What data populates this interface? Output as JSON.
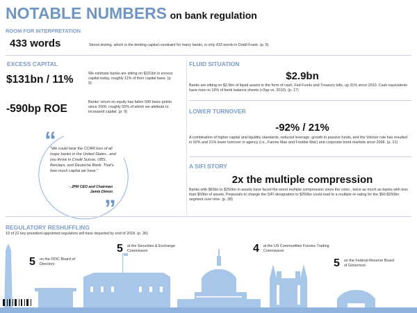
{
  "header": {
    "title": "NOTABLE NUMBERS",
    "subtitle": "on bank regulation"
  },
  "room": {
    "label": "ROOM FOR INTERPRETATION",
    "value": "433 words",
    "text": "Stress testing, which is the binding capital constraint for many banks, is only 433 words in Dodd Frank. (p. 9)"
  },
  "excess": {
    "label": "EXCESS CAPITAL",
    "value1": "$131bn / 11%",
    "text1": "We estimate banks are sitting on $131bn in excess capital today, roughly 11% of their capital base. (p. 9)",
    "value2": "-590bp ROE",
    "text2": "Banks' return on equity has fallen 590 basis points since 2006, roughly 50% of which we attribute to increased capital. (p. 9)"
  },
  "quote": {
    "text": "\"We could bear the CCAR loss of all major banks in the United States...and you throw in Credit Suisse, UBS, Barclays, and Deutsche Bank. That's how much capital we have.\"",
    "attribution1": "- JPM CEO and Chairman",
    "attribution2": "Jamie Dimon",
    "open_mark": "“",
    "close_mark": "”"
  },
  "fluid": {
    "label": "FLUID SITUATION",
    "value": "$2.9bn",
    "text": "Banks are sitting on $2.9bn of liquid assets in the form of cash, Fed Funds and Treasury bills, up 31% since 2010. Cash equivalents have risen to 16% of bank balance sheets (+2pp vs. 2010). (p. 17)"
  },
  "turnover": {
    "label": "LOWER TURNOVER",
    "value": "-92% / 21%",
    "text": "A combination of higher capital and liquidity standards, reduced leverage, growth in passive funds, and the Volcker rule has resulted in 92% and 21% lower turnover in agency (i.e., Fannie Mae and Freddie Mac) and corporate bond markets since 2006. (p. 21)"
  },
  "sifi": {
    "label": "A SIFI STORY",
    "value": "2x the multiple compression",
    "text": "Banks with $50bn to $250bn in assets have faced the worst multiple compression since the crisis , twice as much as banks with less than $50bn of assets. Proposals to change the SIFI designation to $250bn could lead to a multiple re-rating for the $50-$250bn segment over time. (p. 28)"
  },
  "reshuffle": {
    "label": "REGULATORY RESHUFFLING",
    "text": "19 of 22 key president-appointed regulators will have departed by end of 2018. (p. 36)",
    "items": [
      {
        "num": "5",
        "text": "on the FDIC Board of Directors"
      },
      {
        "num": "5",
        "text": "at the Securities & Exchange Commission"
      },
      {
        "num": "4",
        "text": "at the US Commodities Futures Trading Commission"
      },
      {
        "num": "5",
        "text": "on the Federal Reserve Board of Governors"
      }
    ]
  },
  "colors": {
    "accent": "#6f95c3",
    "skyline": "#a8c7e8"
  }
}
